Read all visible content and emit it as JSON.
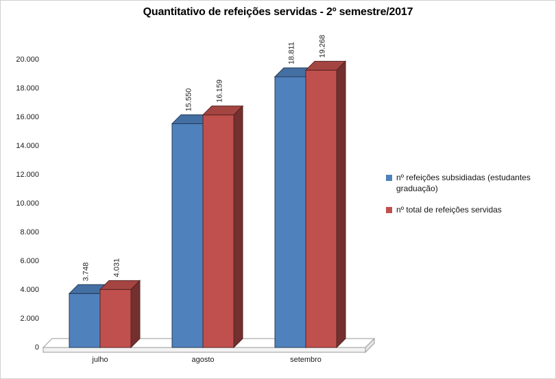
{
  "chart_data": {
    "type": "bar",
    "style": "3d-clustered-column",
    "title": "Quantitativo de refeições servidas - 2º semestre/2017",
    "categories": [
      "julho",
      "agosto",
      "setembro"
    ],
    "series": [
      {
        "name": "nº refeições subsidiadas (estudantes graduação)",
        "color": "#4F81BD",
        "values": [
          3748,
          15550,
          18811
        ],
        "labels": [
          "3.748",
          "15.550",
          "18.811"
        ]
      },
      {
        "name": "nº total de refeições servidas",
        "color": "#C0504D",
        "values": [
          4031,
          16159,
          19268
        ],
        "labels": [
          "4.031",
          "16.159",
          "19.268"
        ]
      }
    ],
    "y_axis": {
      "min": 0,
      "max": 20000,
      "step": 2000,
      "tick_labels": [
        "0",
        "2.000",
        "4.000",
        "6.000",
        "8.000",
        "10.000",
        "12.000",
        "14.000",
        "16.000",
        "18.000",
        "20.000"
      ]
    },
    "xlabel": "",
    "ylabel": "",
    "grid": false,
    "legend_position": "right"
  }
}
